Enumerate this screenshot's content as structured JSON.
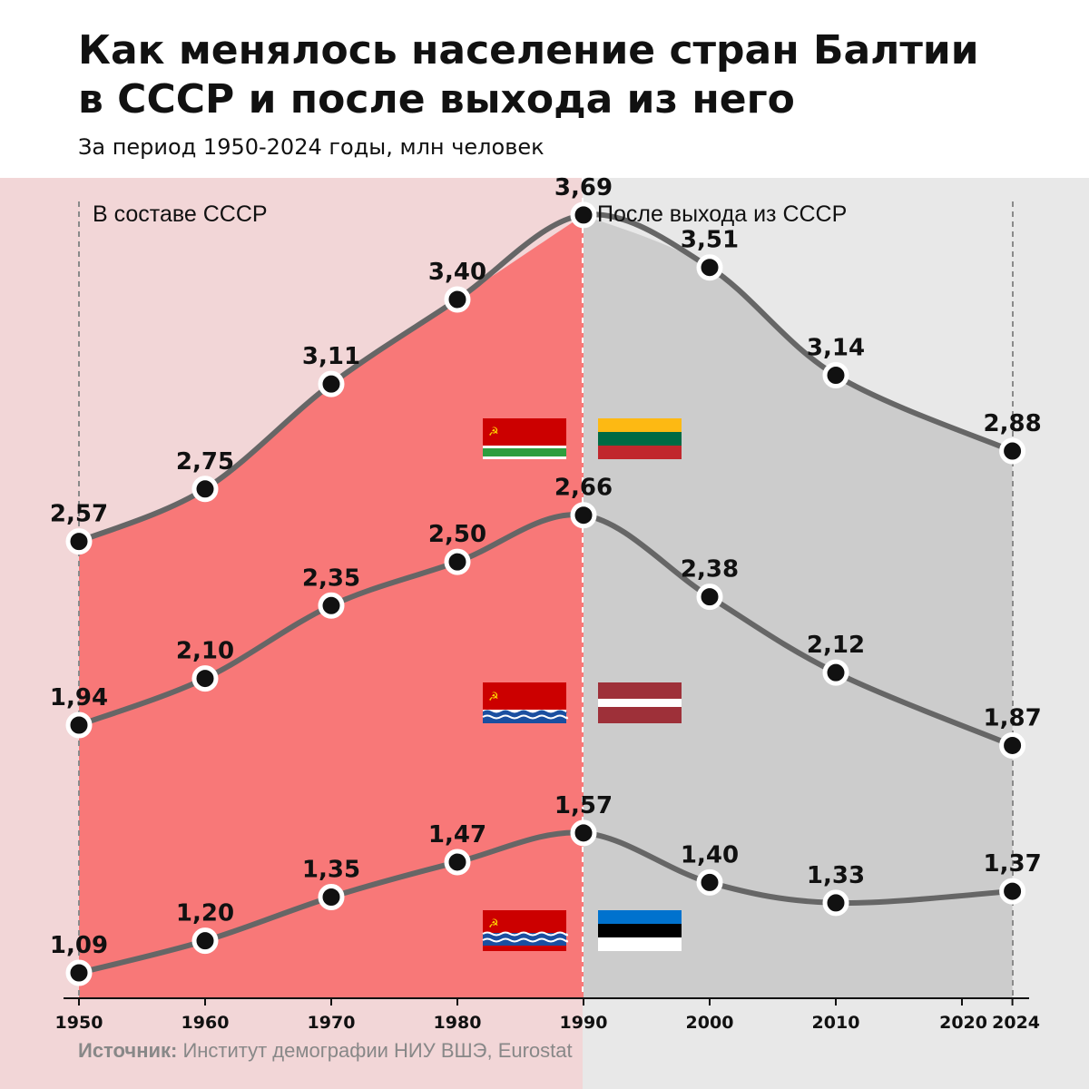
{
  "header": {
    "title_line1": "Как менялось население стран Балтии",
    "title_line2": "в СССР и после выхода из него",
    "subtitle": "За период 1950-2024 годы, млн человек"
  },
  "periods": {
    "ussr_label": "В составе СССР",
    "after_label": "После выхода из СССР"
  },
  "source": {
    "prefix": "Источник:",
    "text": " Институт демографии НИУ ВШЭ, Eurostat"
  },
  "colors": {
    "ussr_background": "#f2d6d7",
    "ussr_area": "#f87878",
    "after_background": "#e8e8e8",
    "after_area": "#cccccc",
    "line": "#666666",
    "marker_fill": "#111111",
    "marker_ring": "#ffffff"
  },
  "chart_data": {
    "type": "line",
    "x": [
      1950,
      1960,
      1970,
      1980,
      1990,
      2000,
      2010,
      2024
    ],
    "x_ticks": [
      "1950",
      "1960",
      "1970",
      "1980",
      "1990",
      "2000",
      "2010",
      "2020",
      "2024"
    ],
    "ylabel": "млн человек",
    "series": [
      {
        "values": [
          2.57,
          2.75,
          3.11,
          3.4,
          3.69,
          3.51,
          3.14,
          2.88
        ],
        "labels": [
          "2,57",
          "2,75",
          "3,11",
          "3,40",
          "3,69",
          "3,51",
          "3,14",
          "2,88"
        ],
        "flags": {
          "before": "lithuanian-ssr-flag",
          "after": "lithuania-flag"
        }
      },
      {
        "values": [
          1.94,
          2.1,
          2.35,
          2.5,
          2.66,
          2.38,
          2.12,
          1.87
        ],
        "labels": [
          "1,94",
          "2,10",
          "2,35",
          "2,50",
          "2,66",
          "2,38",
          "2,12",
          "1,87"
        ],
        "flags": {
          "before": "latvian-ssr-flag",
          "after": "latvia-flag"
        }
      },
      {
        "values": [
          1.09,
          1.2,
          1.35,
          1.47,
          1.57,
          1.4,
          1.33,
          1.37
        ],
        "labels": [
          "1,09",
          "1,20",
          "1,35",
          "1,47",
          "1,57",
          "1,40",
          "1,33",
          "1,37"
        ],
        "flags": {
          "before": "estonian-ssr-flag",
          "after": "estonia-flag"
        }
      }
    ]
  }
}
